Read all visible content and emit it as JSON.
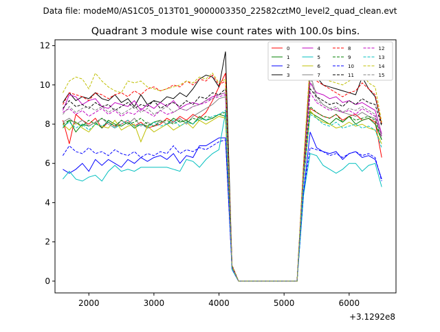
{
  "header": {
    "data_file": "Data file: modeM0/AS1C05_013T01_9000003350_22582cztM0_level2_quad_clean.evt"
  },
  "chart_data": {
    "type": "line",
    "title": "Quadrant 3 module wise count rates with 100.0s bins.",
    "xlabel": "",
    "ylabel": "",
    "x_offset_label": "+3.1292e8",
    "x_ticks": [
      2000,
      3000,
      4000,
      5000,
      6000
    ],
    "y_ticks": [
      0,
      2,
      4,
      6,
      8,
      10,
      12
    ],
    "xlim": [
      1480,
      6720
    ],
    "ylim": [
      -0.6,
      12.3
    ],
    "grid": false,
    "legend_position": "top-right",
    "legend_columns": 4,
    "x": [
      1600,
      1700,
      1800,
      1900,
      2000,
      2100,
      2200,
      2300,
      2400,
      2500,
      2600,
      2700,
      2800,
      2900,
      3000,
      3100,
      3200,
      3300,
      3400,
      3500,
      3600,
      3700,
      3800,
      3900,
      4000,
      4100,
      4200,
      4300,
      4400,
      4500,
      4600,
      4700,
      4800,
      4900,
      5000,
      5100,
      5200,
      5300,
      5400,
      5500,
      5600,
      5700,
      5800,
      5900,
      6000,
      6100,
      6200,
      6300,
      6400,
      6500
    ],
    "series": [
      {
        "name": "0",
        "color": "#ff0000",
        "dash": false,
        "values": [
          8.2,
          7.0,
          8.5,
          8.2,
          8.0,
          8.3,
          7.8,
          8.1,
          7.9,
          8.0,
          8.2,
          7.9,
          8.1,
          7.8,
          7.9,
          8.0,
          8.3,
          8.1,
          8.4,
          8.2,
          8.5,
          8.3,
          8.6,
          9.2,
          9.9,
          10.6,
          0.8,
          0.0,
          0.0,
          0.0,
          0.0,
          0.0,
          0.0,
          0.0,
          0.0,
          0.0,
          0.0,
          5.5,
          8.8,
          8.6,
          8.4,
          8.3,
          8.5,
          8.2,
          8.4,
          8.5,
          8.2,
          8.3,
          8.1,
          6.3
        ]
      },
      {
        "name": "1",
        "color": "#008000",
        "dash": false,
        "values": [
          7.8,
          8.2,
          7.6,
          8.0,
          7.9,
          8.1,
          7.8,
          8.2,
          8.0,
          7.9,
          8.1,
          7.8,
          8.0,
          7.9,
          8.1,
          8.2,
          8.0,
          8.3,
          8.1,
          8.2,
          8.0,
          8.4,
          8.2,
          8.3,
          8.5,
          8.4,
          0.7,
          0.0,
          0.0,
          0.0,
          0.0,
          0.0,
          0.0,
          0.0,
          0.0,
          0.0,
          0.0,
          5.3,
          8.6,
          8.4,
          8.2,
          8.0,
          8.3,
          8.1,
          8.4,
          8.0,
          8.2,
          8.3,
          8.0,
          7.2
        ]
      },
      {
        "name": "2",
        "color": "#0000ff",
        "dash": false,
        "values": [
          5.7,
          5.5,
          5.7,
          6.0,
          5.6,
          6.2,
          5.9,
          6.2,
          6.0,
          5.8,
          6.2,
          6.0,
          6.3,
          6.1,
          6.3,
          6.4,
          6.2,
          6.5,
          6.0,
          6.4,
          6.3,
          6.9,
          6.9,
          7.1,
          7.3,
          7.3,
          0.6,
          0.0,
          0.0,
          0.0,
          0.0,
          0.0,
          0.0,
          0.0,
          0.0,
          0.0,
          0.0,
          4.5,
          7.6,
          6.8,
          6.6,
          6.5,
          6.6,
          6.2,
          6.5,
          6.6,
          6.3,
          6.4,
          6.2,
          5.2
        ]
      },
      {
        "name": "3",
        "color": "#000000",
        "dash": false,
        "values": [
          9.1,
          9.6,
          9.2,
          9.4,
          9.3,
          9.6,
          9.3,
          9.2,
          9.5,
          9.1,
          9.3,
          8.9,
          9.5,
          9.0,
          9.2,
          9.1,
          9.4,
          9.3,
          9.6,
          9.4,
          9.8,
          10.3,
          10.5,
          10.4,
          9.9,
          11.7,
          0.8,
          0.0,
          0.0,
          0.0,
          0.0,
          0.0,
          0.0,
          0.0,
          0.0,
          0.0,
          0.0,
          5.9,
          10.8,
          10.4,
          10.0,
          9.9,
          9.8,
          9.7,
          9.6,
          9.5,
          10.4,
          9.8,
          9.4,
          8.0
        ]
      },
      {
        "name": "4",
        "color": "#bf00bf",
        "dash": false,
        "values": [
          8.7,
          9.5,
          9.4,
          9.0,
          9.2,
          9.3,
          8.9,
          8.8,
          9.1,
          9.0,
          8.9,
          9.2,
          8.7,
          9.0,
          8.8,
          9.1,
          8.9,
          9.2,
          8.8,
          9.0,
          9.1,
          9.0,
          9.2,
          9.4,
          9.5,
          9.6,
          0.8,
          0.0,
          0.0,
          0.0,
          0.0,
          0.0,
          0.0,
          0.0,
          0.0,
          0.0,
          0.0,
          5.6,
          10.1,
          9.6,
          9.5,
          9.3,
          9.4,
          9.1,
          9.2,
          9.0,
          9.1,
          8.9,
          8.7,
          7.5
        ]
      },
      {
        "name": "5",
        "color": "#00bfbf",
        "dash": false,
        "values": [
          5.2,
          5.6,
          5.2,
          5.1,
          5.3,
          5.4,
          5.1,
          5.6,
          5.9,
          5.6,
          5.7,
          5.6,
          5.8,
          5.8,
          5.8,
          5.8,
          5.8,
          5.7,
          5.6,
          6.2,
          6.1,
          5.8,
          6.2,
          6.5,
          6.7,
          8.6,
          0.6,
          0.0,
          0.0,
          0.0,
          0.0,
          0.0,
          0.0,
          0.0,
          0.0,
          0.0,
          0.0,
          4.4,
          6.5,
          6.4,
          5.9,
          5.7,
          5.5,
          5.7,
          6.0,
          6.0,
          5.6,
          5.9,
          6.0,
          4.8
        ]
      },
      {
        "name": "6",
        "color": "#bfbf00",
        "dash": false,
        "values": [
          8.0,
          7.7,
          8.1,
          7.8,
          7.6,
          8.0,
          7.9,
          7.8,
          8.2,
          7.7,
          7.9,
          8.0,
          7.1,
          7.9,
          7.6,
          7.8,
          8.0,
          7.7,
          7.9,
          8.1,
          7.8,
          8.2,
          8.0,
          8.2,
          8.4,
          8.3,
          0.7,
          0.0,
          0.0,
          0.0,
          0.0,
          0.0,
          0.0,
          0.0,
          0.0,
          0.0,
          0.0,
          5.2,
          8.7,
          8.3,
          8.1,
          8.0,
          7.8,
          7.9,
          8.1,
          7.9,
          8.0,
          7.8,
          7.7,
          7.0
        ]
      },
      {
        "name": "7",
        "color": "#808080",
        "dash": false,
        "values": [
          8.1,
          8.3,
          8.0,
          8.2,
          7.9,
          8.1,
          8.3,
          8.0,
          7.8,
          8.2,
          8.0,
          8.3,
          7.9,
          8.1,
          7.9,
          8.2,
          8.0,
          8.1,
          8.3,
          8.0,
          8.4,
          8.6,
          8.8,
          9.0,
          9.3,
          9.4,
          0.7,
          0.0,
          0.0,
          0.0,
          0.0,
          0.0,
          0.0,
          0.0,
          0.0,
          0.0,
          0.0,
          5.6,
          10.6,
          9.4,
          9.0,
          8.8,
          8.7,
          8.6,
          8.5,
          8.4,
          8.6,
          8.4,
          8.3,
          7.4
        ]
      },
      {
        "name": "8",
        "color": "#ff0000",
        "dash": true,
        "values": [
          9.0,
          9.6,
          9.5,
          9.4,
          9.2,
          9.6,
          9.5,
          9.3,
          9.5,
          9.6,
          9.4,
          9.7,
          9.5,
          9.8,
          9.9,
          9.7,
          9.8,
          10.0,
          9.9,
          10.2,
          10.0,
          10.3,
          10.2,
          10.5,
          10.0,
          10.2,
          0.8,
          0.0,
          0.0,
          0.0,
          0.0,
          0.0,
          0.0,
          0.0,
          0.0,
          0.0,
          0.0,
          6.0,
          10.9,
          10.2,
          10.0,
          9.8,
          9.6,
          9.4,
          9.6,
          9.7,
          10.1,
          9.8,
          9.5,
          8.0
        ]
      },
      {
        "name": "9",
        "color": "#008000",
        "dash": true,
        "values": [
          8.0,
          8.2,
          8.1,
          7.9,
          8.2,
          8.0,
          8.3,
          8.1,
          7.9,
          8.2,
          8.0,
          8.1,
          8.3,
          8.0,
          7.9,
          8.1,
          8.2,
          8.0,
          8.2,
          8.1,
          8.3,
          8.2,
          8.4,
          8.3,
          8.5,
          8.6,
          0.7,
          0.0,
          0.0,
          0.0,
          0.0,
          0.0,
          0.0,
          0.0,
          0.0,
          0.0,
          0.0,
          5.4,
          8.9,
          8.6,
          8.4,
          8.3,
          8.5,
          8.1,
          8.4,
          8.2,
          8.3,
          8.4,
          8.2,
          7.2
        ]
      },
      {
        "name": "10",
        "color": "#0000ff",
        "dash": true,
        "values": [
          6.4,
          6.9,
          6.6,
          6.5,
          6.8,
          6.5,
          6.6,
          6.4,
          6.7,
          6.5,
          6.4,
          6.6,
          6.3,
          6.5,
          6.4,
          6.6,
          6.5,
          6.9,
          6.5,
          6.7,
          6.6,
          6.8,
          6.7,
          6.9,
          7.1,
          7.2,
          0.6,
          0.0,
          0.0,
          0.0,
          0.0,
          0.0,
          0.0,
          0.0,
          0.0,
          0.0,
          0.0,
          4.6,
          6.8,
          6.7,
          6.6,
          6.4,
          6.5,
          6.3,
          6.5,
          6.6,
          6.4,
          6.5,
          6.3,
          5.1
        ]
      },
      {
        "name": "11",
        "color": "#000000",
        "dash": true,
        "values": [
          8.8,
          9.2,
          8.9,
          9.0,
          8.8,
          9.1,
          8.9,
          9.0,
          8.7,
          8.9,
          9.1,
          8.8,
          9.0,
          8.9,
          9.2,
          8.8,
          9.0,
          9.1,
          8.9,
          9.2,
          9.0,
          9.4,
          9.3,
          9.6,
          9.5,
          9.8,
          0.8,
          0.0,
          0.0,
          0.0,
          0.0,
          0.0,
          0.0,
          0.0,
          0.0,
          0.0,
          0.0,
          5.7,
          9.8,
          9.4,
          9.2,
          9.0,
          9.1,
          8.9,
          9.2,
          9.0,
          9.3,
          9.1,
          9.0,
          7.9
        ]
      },
      {
        "name": "12",
        "color": "#bf00bf",
        "dash": true,
        "values": [
          8.6,
          8.8,
          8.5,
          8.7,
          8.4,
          8.6,
          8.8,
          8.5,
          8.7,
          8.4,
          8.6,
          8.5,
          8.8,
          8.6,
          8.4,
          8.7,
          8.5,
          8.6,
          8.8,
          8.7,
          8.9,
          9.0,
          9.1,
          9.3,
          9.4,
          9.5,
          0.7,
          0.0,
          0.0,
          0.0,
          0.0,
          0.0,
          0.0,
          0.0,
          0.0,
          0.0,
          0.0,
          5.5,
          9.6,
          9.1,
          8.9,
          8.7,
          8.8,
          8.6,
          8.7,
          8.5,
          8.8,
          8.6,
          8.4,
          7.3
        ]
      },
      {
        "name": "13",
        "color": "#00bfbf",
        "dash": true,
        "values": [
          7.9,
          8.1,
          7.8,
          8.0,
          7.7,
          8.0,
          7.9,
          8.1,
          7.8,
          8.0,
          8.2,
          7.9,
          8.0,
          7.8,
          8.1,
          7.9,
          8.0,
          8.2,
          7.9,
          8.1,
          8.0,
          8.3,
          8.2,
          8.4,
          8.5,
          8.7,
          0.6,
          0.0,
          0.0,
          0.0,
          0.0,
          0.0,
          0.0,
          0.0,
          0.0,
          0.0,
          0.0,
          5.0,
          8.5,
          8.3,
          8.0,
          7.9,
          8.1,
          7.8,
          7.9,
          8.0,
          7.8,
          7.9,
          7.7,
          6.8
        ]
      },
      {
        "name": "14",
        "color": "#bfbf00",
        "dash": true,
        "values": [
          9.6,
          10.2,
          10.4,
          10.3,
          9.8,
          10.6,
          10.2,
          9.9,
          9.7,
          9.6,
          10.2,
          10.1,
          10.2,
          9.9,
          9.8,
          9.7,
          9.8,
          9.9,
          10.0,
          10.2,
          10.1,
          10.4,
          10.3,
          10.6,
          10.1,
          10.3,
          0.8,
          0.0,
          0.0,
          0.0,
          0.0,
          0.0,
          0.0,
          0.0,
          0.0,
          0.0,
          0.0,
          6.1,
          11.2,
          10.5,
          10.3,
          10.2,
          10.1,
          10.0,
          10.2,
          10.4,
          10.6,
          10.1,
          9.9,
          8.1
        ]
      },
      {
        "name": "15",
        "color": "#808080",
        "dash": true,
        "values": [
          8.5,
          8.9,
          8.6,
          8.8,
          8.9,
          8.7,
          8.9,
          8.6,
          8.8,
          8.5,
          8.7,
          8.9,
          8.6,
          8.8,
          8.5,
          8.7,
          8.9,
          8.6,
          8.8,
          8.7,
          8.9,
          9.0,
          9.2,
          9.3,
          9.5,
          9.6,
          0.7,
          0.0,
          0.0,
          0.0,
          0.0,
          0.0,
          0.0,
          0.0,
          0.0,
          0.0,
          0.0,
          5.6,
          10.4,
          9.2,
          9.0,
          8.8,
          8.9,
          8.6,
          8.8,
          8.7,
          8.9,
          8.7,
          8.5,
          7.4
        ]
      }
    ]
  }
}
